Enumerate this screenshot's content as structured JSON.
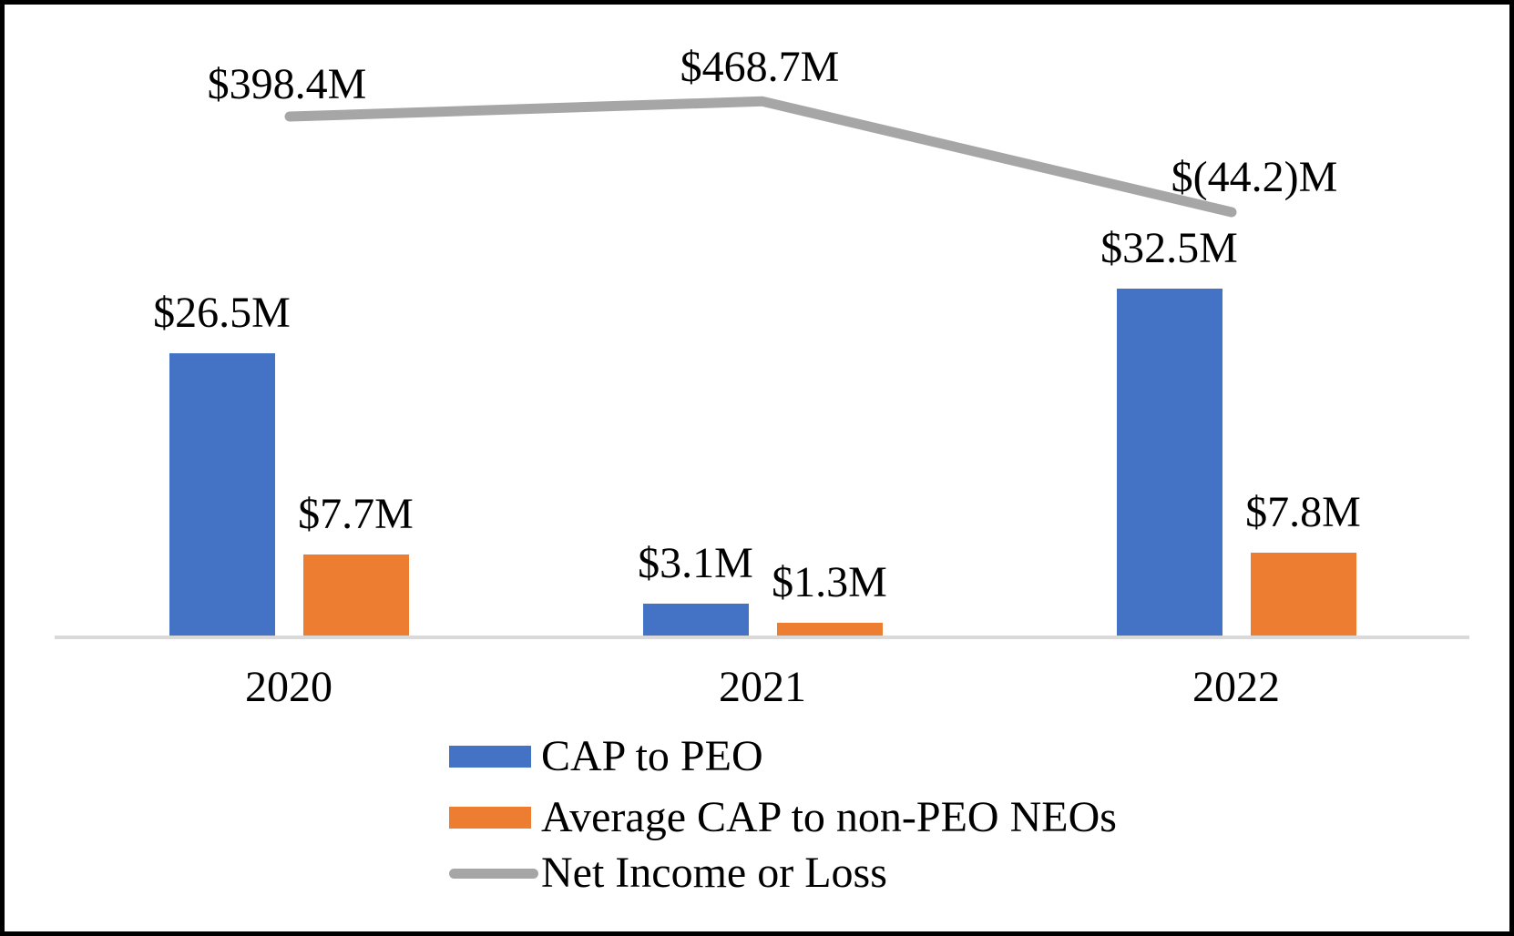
{
  "chart_data": {
    "type": "combo-bar-line",
    "title": "",
    "categories": [
      "2020",
      "2021",
      "2022"
    ],
    "series": [
      {
        "name": "CAP to PEO",
        "type": "bar",
        "color": "#4472C4",
        "values": [
          26.5,
          3.1,
          32.5
        ],
        "labels": [
          "$26.5M",
          "$3.1M",
          "$32.5M"
        ]
      },
      {
        "name": "Average CAP to non-PEO NEOs",
        "type": "bar",
        "color": "#ED7D31",
        "values": [
          7.7,
          1.3,
          7.8
        ],
        "labels": [
          "$7.7M",
          "$1.3M",
          "$7.8M"
        ]
      },
      {
        "name": "Net Income or Loss",
        "type": "line",
        "color": "#A6A6A6",
        "values": [
          398.4,
          468.7,
          -44.2
        ],
        "labels": [
          "$398.4M",
          "$468.7M",
          "$(44.2)M"
        ]
      }
    ],
    "axes": {
      "x_ticks": [
        "2020",
        "2021",
        "2022"
      ],
      "y_axis_labels_visible": false,
      "baseline_color": "#D9D9D9"
    },
    "grid": "off",
    "legend": {
      "position": "bottom-center",
      "entries": [
        {
          "label": "CAP to PEO",
          "swatch": "bar",
          "color": "#4472C4"
        },
        {
          "label": "Average CAP to non-PEO NEOs",
          "swatch": "bar",
          "color": "#ED7D31"
        },
        {
          "label": "Net Income or Loss",
          "swatch": "line",
          "color": "#A6A6A6"
        }
      ]
    },
    "frame_border_color": "#000000",
    "background_color": "#FFFFFF"
  }
}
